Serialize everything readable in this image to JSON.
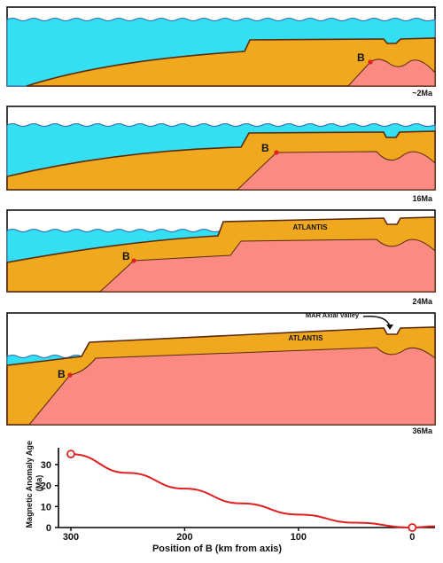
{
  "panels": [
    {
      "age_label": "~2Ma",
      "point_label": "B"
    },
    {
      "age_label": "16Ma",
      "point_label": "B"
    },
    {
      "age_label": "24Ma",
      "point_label": "B",
      "massif_label": "ATLANTIS"
    },
    {
      "age_label": "36Ma",
      "point_label": "B",
      "massif_label": "ATLANTIS",
      "annotation": "MAR Axial Valley"
    }
  ],
  "colors": {
    "sea": "#33dff0",
    "crust": "#f0a81e",
    "mantle": "#fa8a82",
    "outline": "#5a2a10",
    "point": "#e0201a",
    "curve": "#e02020"
  },
  "chart_data": {
    "type": "line",
    "ylabel": "Magnetic Anomaly Age (Ma)",
    "xlabel": "Position of B (km from axis)",
    "x_ticks": [
      "300",
      "200",
      "100",
      "0"
    ],
    "y_ticks": [
      "0",
      "10",
      "20",
      "30"
    ],
    "xlim": [
      300,
      -20
    ],
    "ylim": [
      0,
      38
    ],
    "series": [
      {
        "values": [
          [
            300,
            35
          ],
          [
            250,
            26
          ],
          [
            200,
            18.5
          ],
          [
            150,
            11.5
          ],
          [
            100,
            6.2
          ],
          [
            50,
            2.3
          ],
          [
            0,
            0
          ],
          [
            -20,
            0.6
          ]
        ]
      }
    ],
    "markers": [
      [
        300,
        35
      ],
      [
        0,
        0
      ]
    ]
  }
}
